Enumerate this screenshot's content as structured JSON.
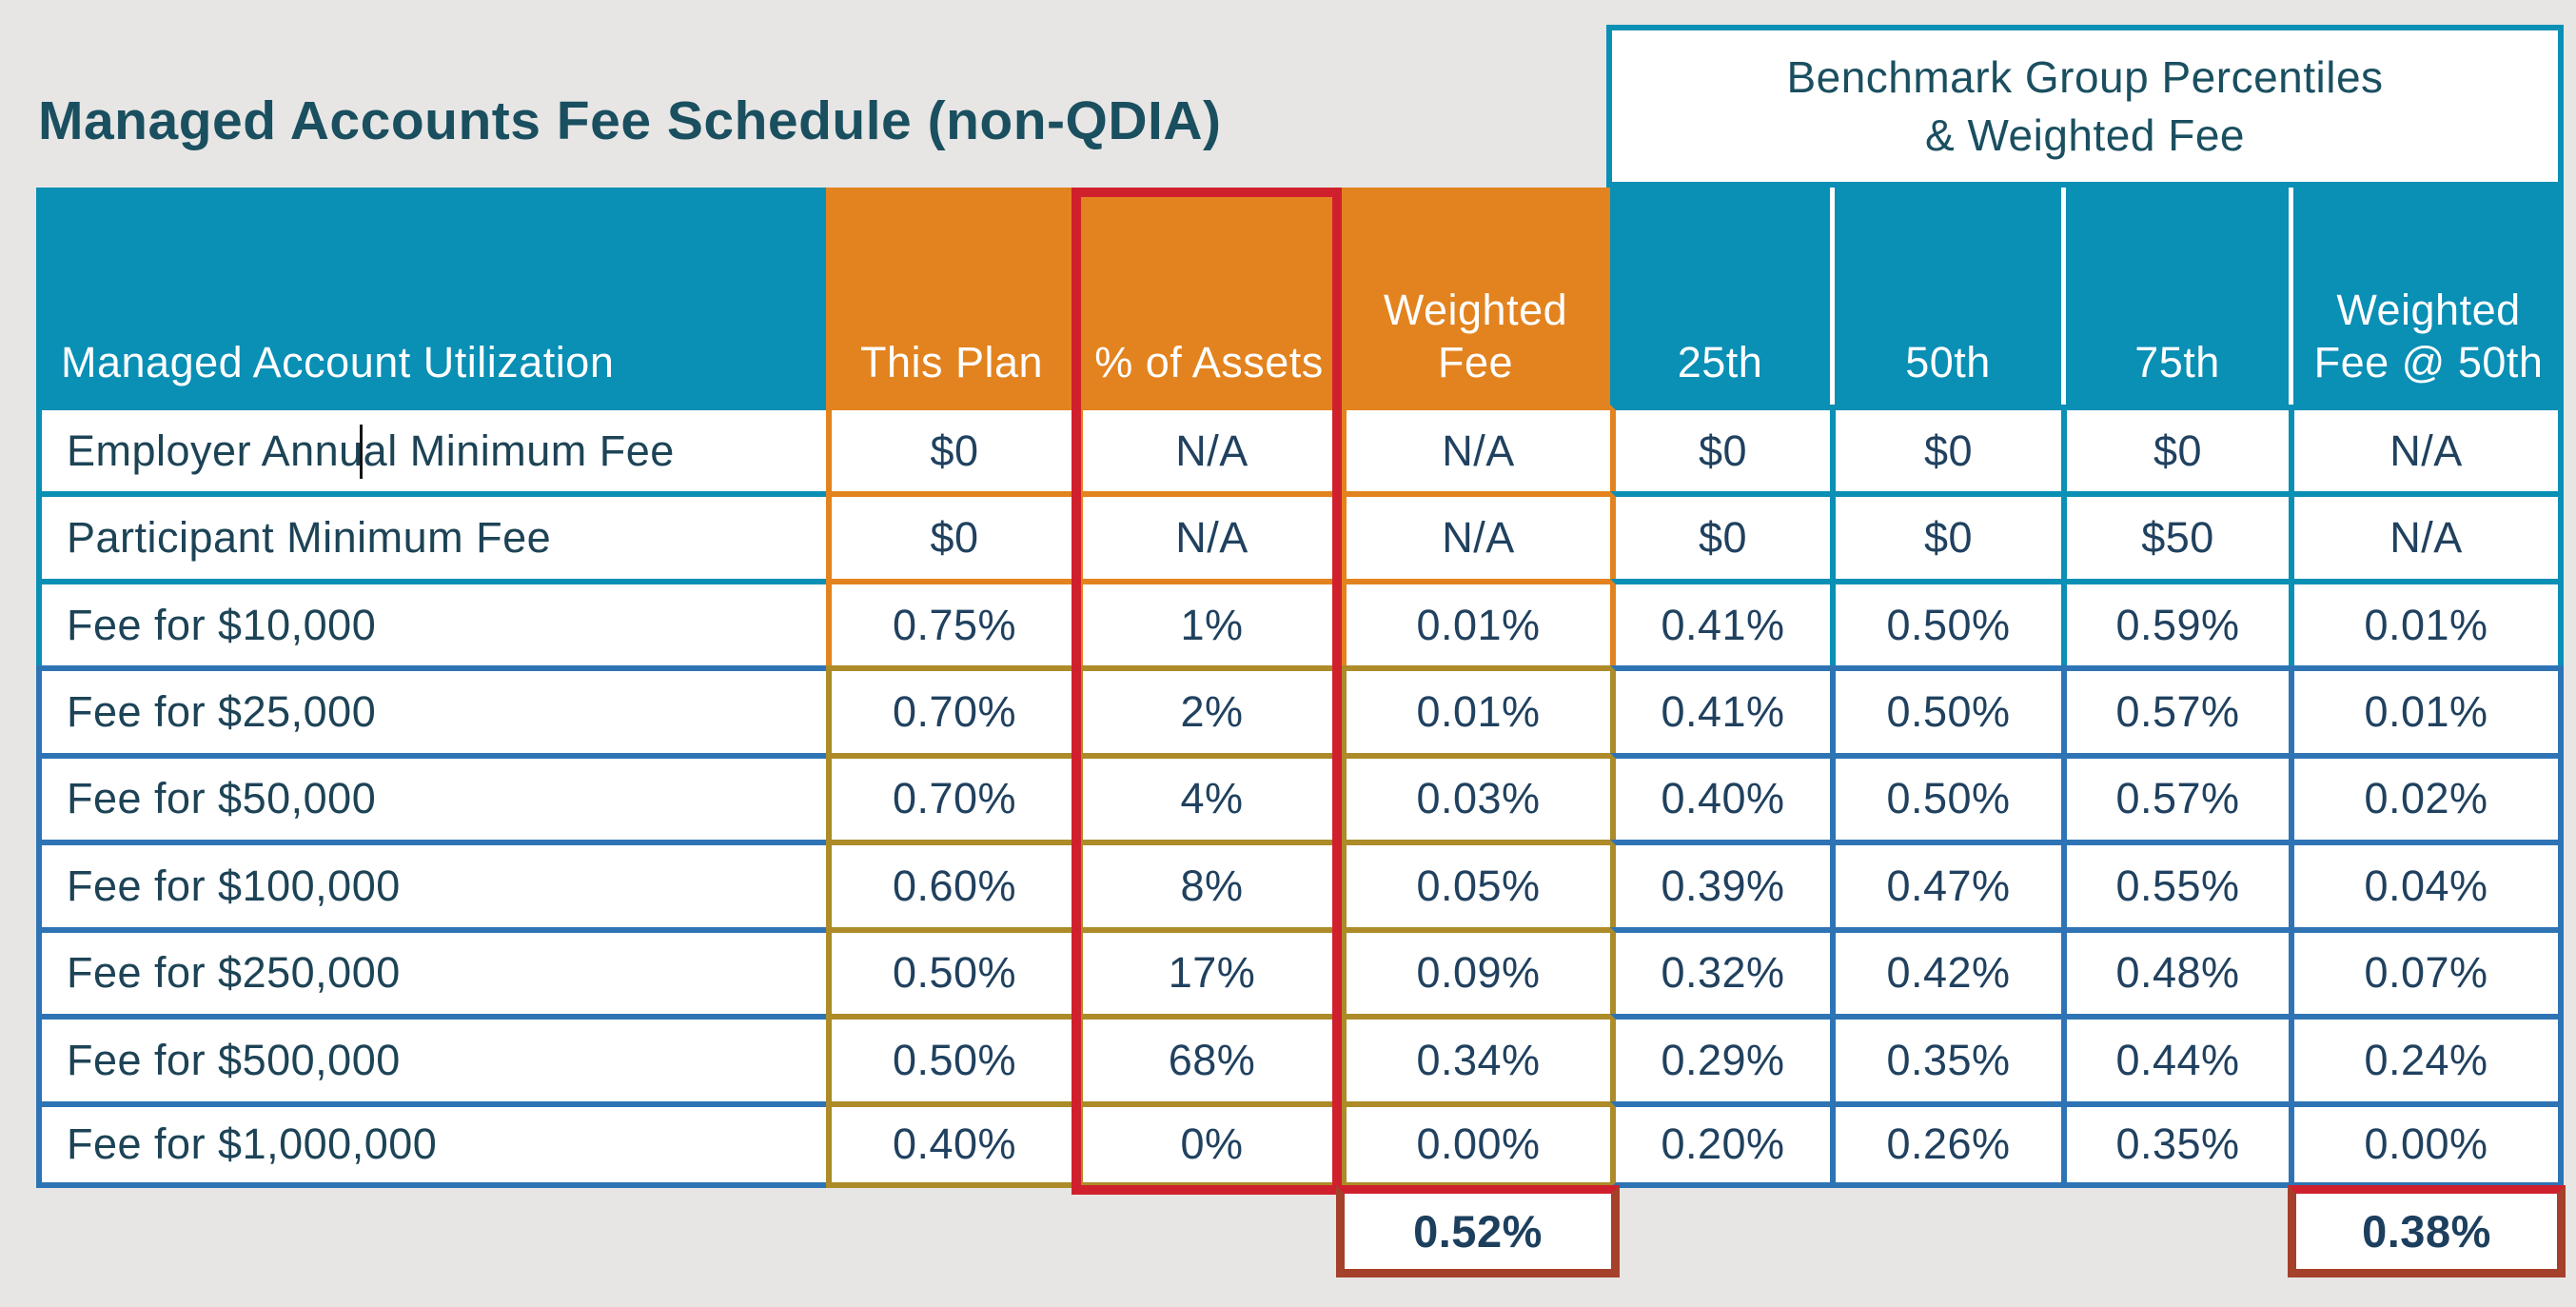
{
  "title": "Managed Accounts Fee Schedule (non-QDIA)",
  "benchmark_header": {
    "line1": "Benchmark Group Percentiles",
    "line2": "& Weighted Fee"
  },
  "table": {
    "columns": [
      {
        "key": "label",
        "header": "Managed Account Utilization"
      },
      {
        "key": "this_plan",
        "header": "This Plan"
      },
      {
        "key": "pct_assets",
        "header": "% of Assets"
      },
      {
        "key": "weighted_fee",
        "header": "Weighted Fee"
      },
      {
        "key": "p25",
        "header": "25th"
      },
      {
        "key": "p50",
        "header": "50th"
      },
      {
        "key": "p75",
        "header": "75th"
      },
      {
        "key": "wf50",
        "header": "Weighted Fee @ 50th"
      }
    ],
    "rows": [
      {
        "label": "Employer Annual Minimum Fee",
        "this_plan": "$0",
        "pct_assets": "N/A",
        "weighted_fee": "N/A",
        "p25": "$0",
        "p50": "$0",
        "p75": "$0",
        "wf50": "N/A"
      },
      {
        "label": "Participant Minimum Fee",
        "this_plan": "$0",
        "pct_assets": "N/A",
        "weighted_fee": "N/A",
        "p25": "$0",
        "p50": "$0",
        "p75": "$50",
        "wf50": "N/A"
      },
      {
        "label": "Fee for $10,000",
        "this_plan": "0.75%",
        "pct_assets": "1%",
        "weighted_fee": "0.01%",
        "p25": "0.41%",
        "p50": "0.50%",
        "p75": "0.59%",
        "wf50": "0.01%"
      },
      {
        "label": "Fee for $25,000",
        "this_plan": "0.70%",
        "pct_assets": "2%",
        "weighted_fee": "0.01%",
        "p25": "0.41%",
        "p50": "0.50%",
        "p75": "0.57%",
        "wf50": "0.01%"
      },
      {
        "label": "Fee for $50,000",
        "this_plan": "0.70%",
        "pct_assets": "4%",
        "weighted_fee": "0.03%",
        "p25": "0.40%",
        "p50": "0.50%",
        "p75": "0.57%",
        "wf50": "0.02%"
      },
      {
        "label": "Fee for $100,000",
        "this_plan": "0.60%",
        "pct_assets": "8%",
        "weighted_fee": "0.05%",
        "p25": "0.39%",
        "p50": "0.47%",
        "p75": "0.55%",
        "wf50": "0.04%"
      },
      {
        "label": "Fee for $250,000",
        "this_plan": "0.50%",
        "pct_assets": "17%",
        "weighted_fee": "0.09%",
        "p25": "0.32%",
        "p50": "0.42%",
        "p75": "0.48%",
        "wf50": "0.07%"
      },
      {
        "label": "Fee for $500,000",
        "this_plan": "0.50%",
        "pct_assets": "68%",
        "weighted_fee": "0.34%",
        "p25": "0.29%",
        "p50": "0.35%",
        "p75": "0.44%",
        "wf50": "0.24%"
      },
      {
        "label": "Fee for $1,000,000",
        "this_plan": "0.40%",
        "pct_assets": "0%",
        "weighted_fee": "0.00%",
        "p25": "0.20%",
        "p50": "0.26%",
        "p75": "0.35%",
        "wf50": "0.00%"
      }
    ],
    "summary": {
      "weighted_fee_total": "0.52%",
      "wf50_total": "0.38%"
    }
  },
  "colors": {
    "teal": "#0a8fb5",
    "orange": "#e3831f",
    "border_blue": "#2e74b5",
    "border_gold": "#ac8b28",
    "highlight_red": "#d0202d",
    "summary_border": "#a5402b",
    "title_text": "#1a4f60",
    "background": "#e7e6e4"
  }
}
